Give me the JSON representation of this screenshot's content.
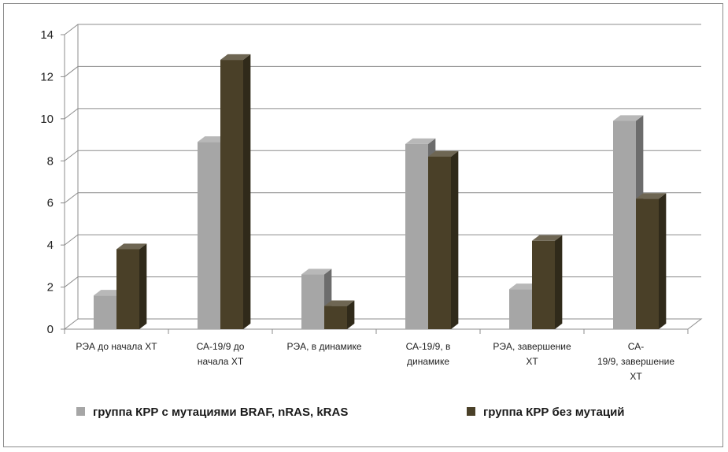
{
  "chart_data": {
    "type": "bar",
    "title": "",
    "xlabel": "",
    "ylabel": "",
    "ylim": [
      0,
      14
    ],
    "yticks": [
      "0",
      "2",
      "4",
      "6",
      "8",
      "10",
      "12",
      "14"
    ],
    "grid": true,
    "legend_position": "bottom",
    "categories": [
      [
        "РЭА до начала ХТ"
      ],
      [
        "СА-19/9 до",
        "начала ХТ"
      ],
      [
        "РЭА, в динамике"
      ],
      [
        "СА-19/9, в",
        "динамике"
      ],
      [
        "РЭА, завершение",
        "ХТ"
      ],
      [
        "СА-",
        "19/9, завершение",
        "ХТ"
      ]
    ],
    "series": [
      {
        "name": "группа КРР с мутациями BRAF, nRAS, kRAS",
        "values": [
          1.6,
          8.9,
          2.6,
          8.8,
          1.9,
          9.9
        ],
        "color": "#a6a6a6"
      },
      {
        "name": "группа КРР без мутаций",
        "values": [
          3.8,
          12.8,
          1.1,
          8.2,
          4.2,
          6.2
        ],
        "color": "#4a4028"
      }
    ]
  }
}
